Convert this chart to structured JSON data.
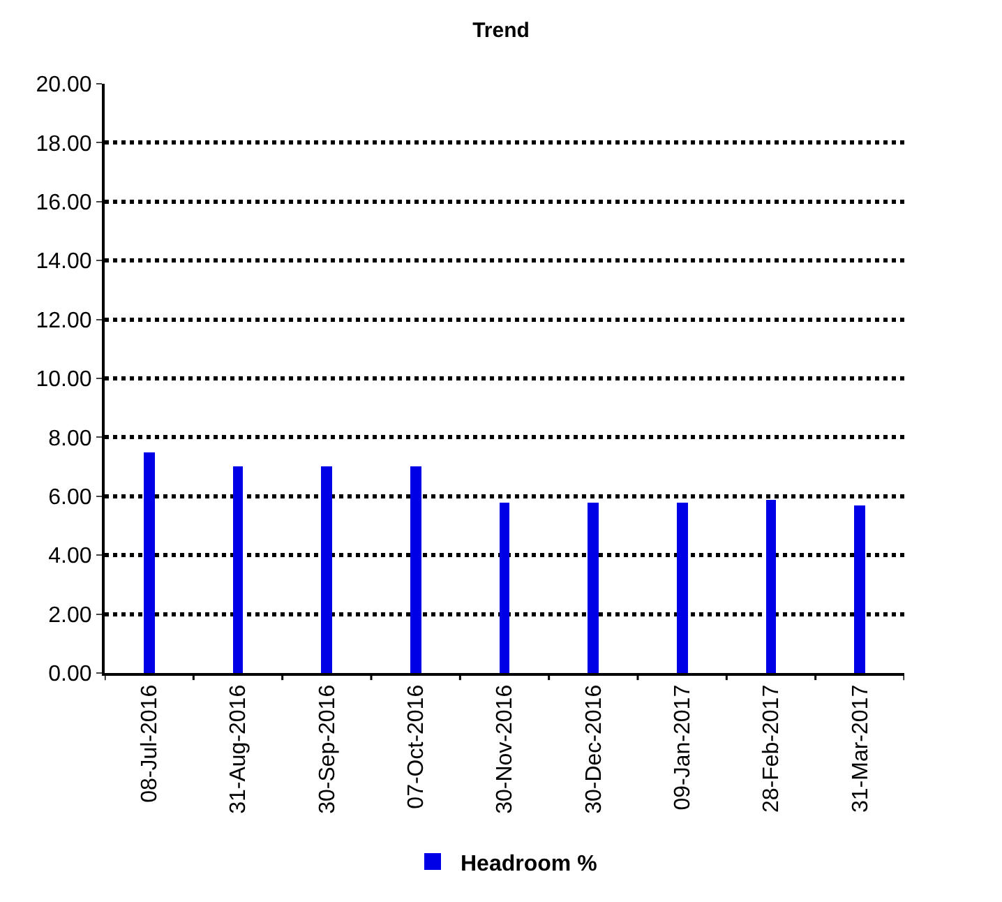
{
  "chart_data": {
    "type": "bar",
    "title": "Trend",
    "categories": [
      "08-Jul-2016",
      "31-Aug-2016",
      "30-Sep-2016",
      "07-Oct-2016",
      "30-Nov-2016",
      "30-Dec-2016",
      "09-Jan-2017",
      "28-Feb-2017",
      "31-Mar-2017"
    ],
    "series": [
      {
        "name": "Headroom %",
        "color": "#0000e6",
        "values": [
          7.5,
          7.0,
          7.0,
          7.0,
          5.8,
          5.8,
          5.8,
          5.9,
          5.7
        ]
      }
    ],
    "ylim": [
      0,
      20
    ],
    "yticks": [
      {
        "value": 0,
        "label": "0.00"
      },
      {
        "value": 2,
        "label": "2.00"
      },
      {
        "value": 4,
        "label": "4.00"
      },
      {
        "value": 6,
        "label": "6.00"
      },
      {
        "value": 8,
        "label": "8.00"
      },
      {
        "value": 10,
        "label": "10.00"
      },
      {
        "value": 12,
        "label": "12.00"
      },
      {
        "value": 14,
        "label": "14.00"
      },
      {
        "value": 16,
        "label": "16.00"
      },
      {
        "value": 18,
        "label": "18.00"
      },
      {
        "value": 20,
        "label": "20.00"
      }
    ],
    "grid": "y",
    "legend": "bottom"
  }
}
